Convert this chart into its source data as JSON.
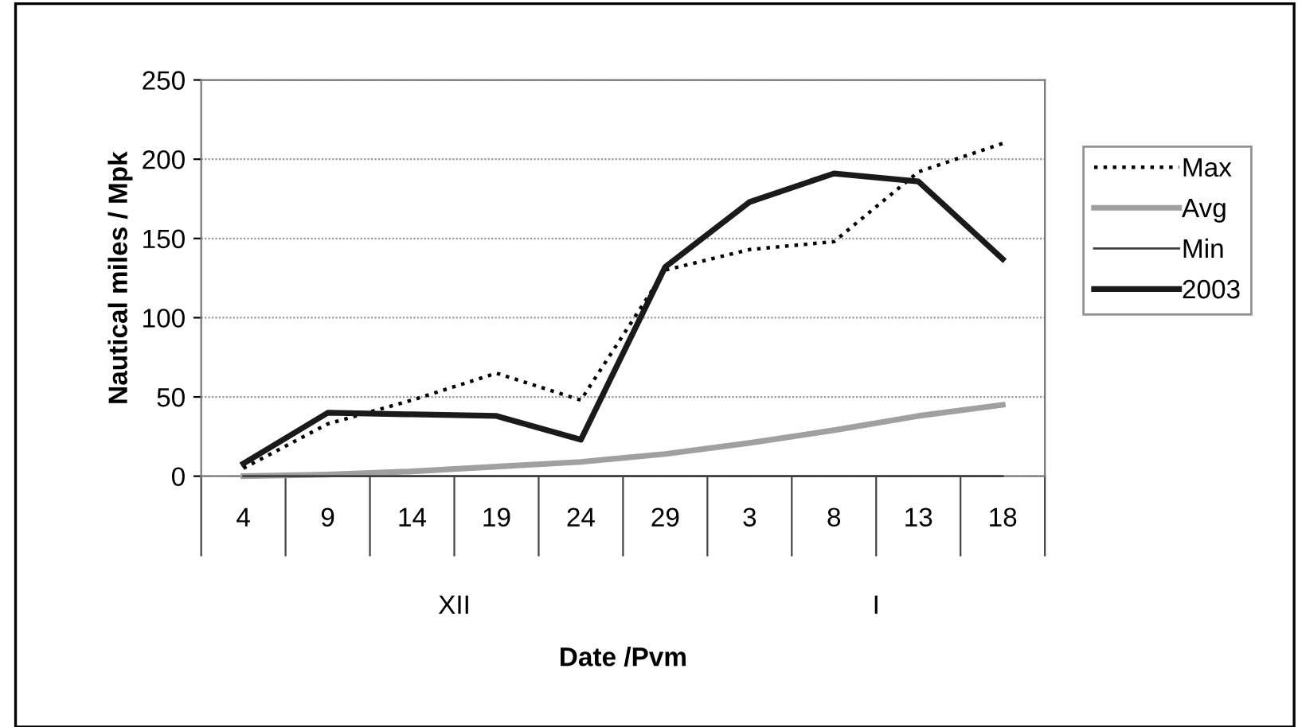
{
  "chart_data": {
    "type": "line",
    "xlabel": "Date /Pvm",
    "ylabel": "Nautical miles / Mpk",
    "categories": [
      "4",
      "9",
      "14",
      "19",
      "24",
      "29",
      "3",
      "8",
      "13",
      "18"
    ],
    "series": [
      {
        "name": "Max",
        "color": "#000000",
        "line_style": "dotted",
        "values": [
          5,
          33,
          48,
          65,
          48,
          130,
          143,
          148,
          192,
          210
        ]
      },
      {
        "name": "Avg",
        "color": "#a0a0a0",
        "line_style": "solid",
        "values": [
          0,
          1,
          3,
          6,
          9,
          14,
          21,
          29,
          38,
          45
        ]
      },
      {
        "name": "Min",
        "color": "#404040",
        "line_style": "solid",
        "values": [
          0,
          0,
          0,
          0,
          0,
          0,
          0,
          0,
          0,
          0
        ]
      },
      {
        "name": "2003",
        "color": "#1a1a1a",
        "line_style": "solid",
        "values": [
          8,
          40,
          39,
          38,
          23,
          132,
          173,
          191,
          186,
          137
        ]
      }
    ],
    "annotations": [
      "XII",
      "I"
    ],
    "ylim": [
      0,
      250
    ],
    "yticks": [
      0,
      50,
      100,
      150,
      200,
      250
    ],
    "grid": "y",
    "legend": "right",
    "marker": "none"
  }
}
